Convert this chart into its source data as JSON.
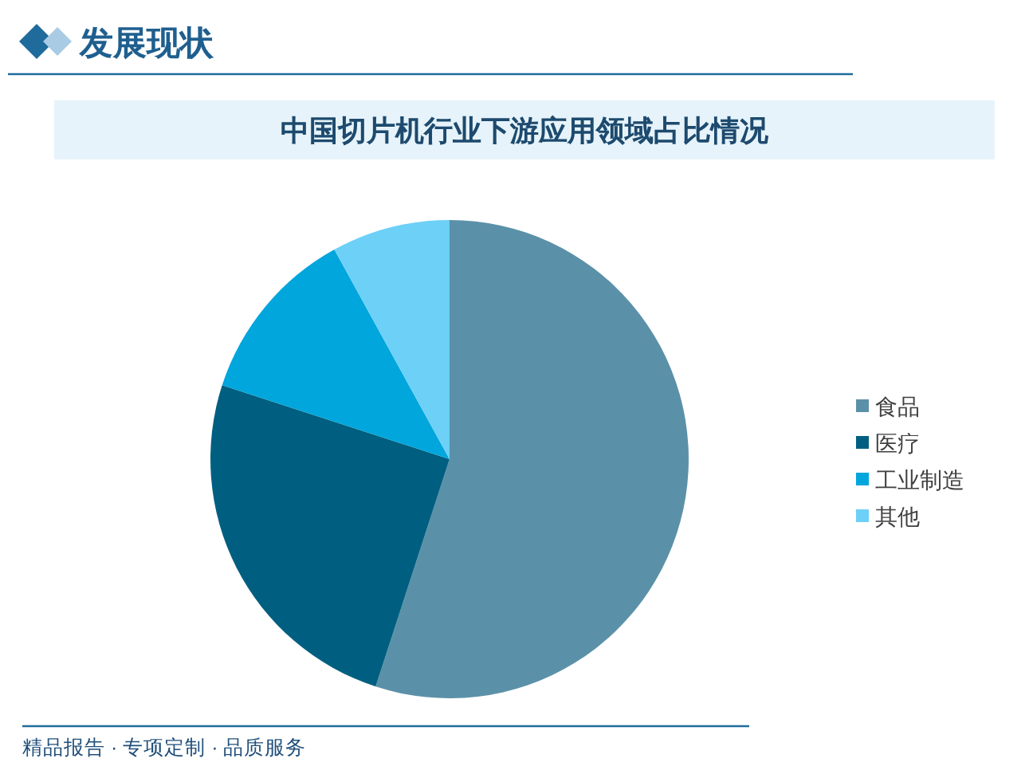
{
  "chart_data": {
    "type": "pie",
    "title": "中国切片机行业下游应用领域占比情况",
    "categories": [
      "食品",
      "医疗",
      "工业制造",
      "其他"
    ],
    "values": [
      55,
      25,
      12,
      8
    ],
    "colors": [
      "#5b91a8",
      "#005f80",
      "#00a6dc",
      "#6dd0f7"
    ],
    "legend": "right",
    "annotations": [
      "发展现状",
      "精品报告 · 专项定制 · 品质服务"
    ]
  }
}
